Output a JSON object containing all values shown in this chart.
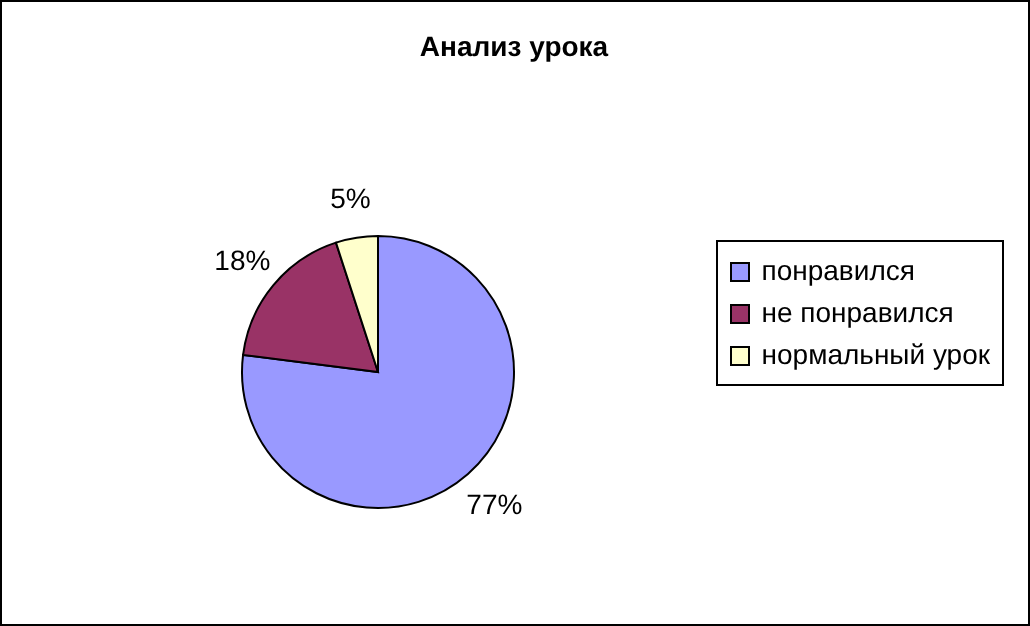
{
  "chart_data": {
    "type": "pie",
    "title": "Анализ урока",
    "categories": [
      "понравился",
      "не понравился",
      "нормальный урок"
    ],
    "values": [
      77,
      18,
      5
    ],
    "value_labels": [
      "77%",
      "18%",
      "5%"
    ],
    "colors": [
      "#9999ff",
      "#993366",
      "#ffffcc"
    ],
    "legend": "right"
  }
}
